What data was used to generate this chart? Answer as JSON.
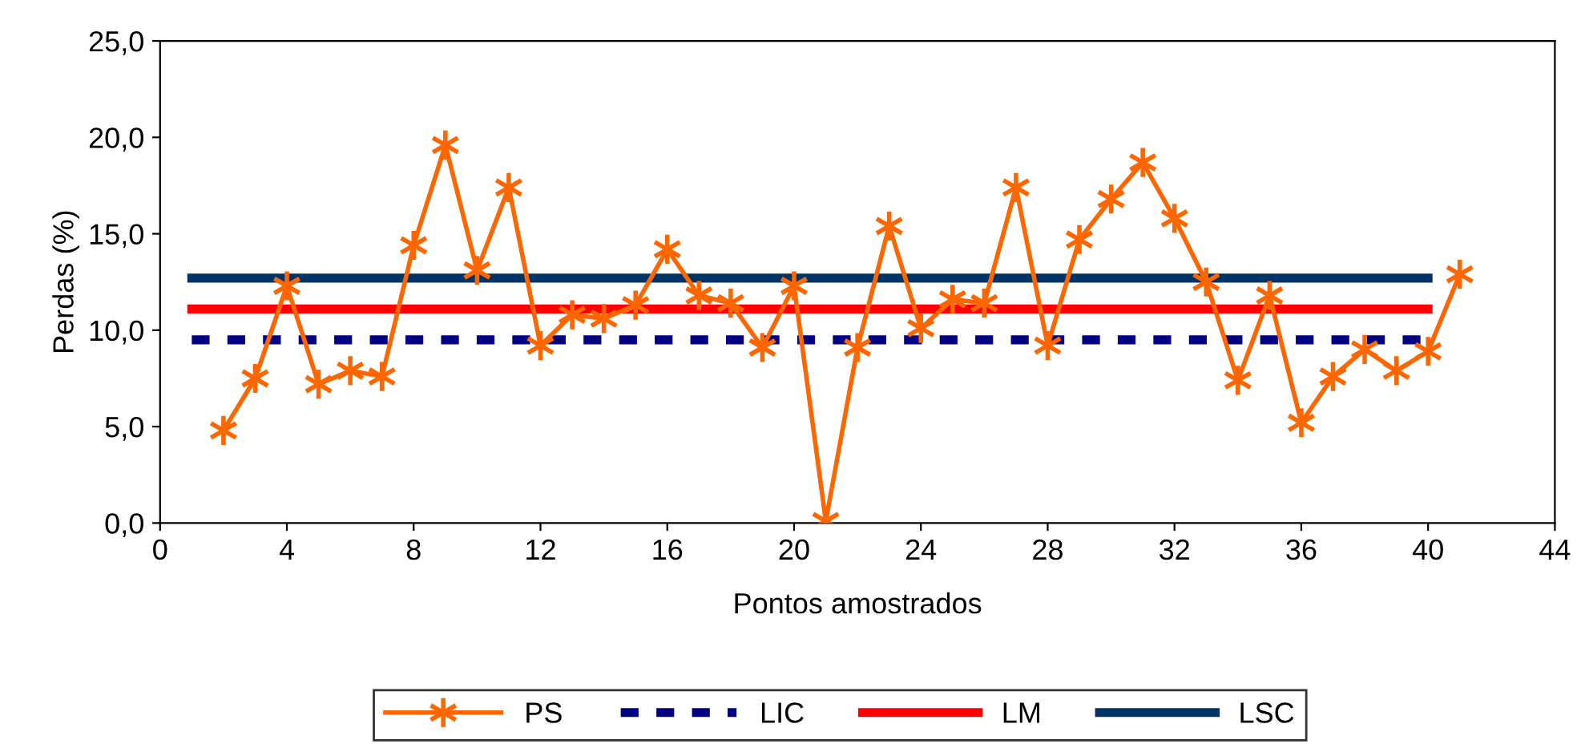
{
  "chart_data": {
    "type": "line",
    "xlabel": "Pontos amostrados",
    "ylabel": "Perdas (%)",
    "xlim": [
      0,
      44
    ],
    "xticks": [
      0,
      4,
      8,
      12,
      16,
      20,
      24,
      28,
      32,
      36,
      40,
      44
    ],
    "ylim": [
      0,
      25
    ],
    "yticks": [
      {
        "value": 0,
        "label": "0,0"
      },
      {
        "value": 5,
        "label": "5,0"
      },
      {
        "value": 10,
        "label": "10,0"
      },
      {
        "value": 15,
        "label": "15,0"
      },
      {
        "value": 20,
        "label": "20,0"
      },
      {
        "value": 25,
        "label": "25,0"
      }
    ],
    "grid": false,
    "legend": "bottom",
    "series": [
      {
        "name": "PS",
        "color": "#ff6600",
        "marker": "cross",
        "line_style": "solid",
        "x": [
          2,
          3,
          4,
          5,
          6,
          7,
          8,
          9,
          10,
          11,
          12,
          13,
          14,
          15,
          16,
          17,
          18,
          19,
          20,
          21,
          22,
          23,
          24,
          25,
          26,
          27,
          28,
          29,
          30,
          31,
          32,
          33,
          34,
          35,
          36,
          37,
          38,
          39,
          40,
          41
        ],
        "values": [
          4.8,
          7.5,
          12.3,
          7.2,
          7.9,
          7.6,
          14.4,
          19.6,
          13.1,
          17.4,
          9.2,
          10.8,
          10.6,
          11.3,
          14.2,
          11.8,
          11.4,
          9.1,
          12.3,
          0.1,
          9.1,
          15.4,
          10.1,
          11.6,
          11.4,
          17.4,
          9.2,
          14.7,
          16.8,
          18.7,
          15.8,
          12.5,
          7.4,
          11.8,
          5.2,
          7.6,
          9.0,
          7.9,
          8.9,
          12.9
        ]
      },
      {
        "name": "LIC",
        "color": "#000080",
        "marker": "none",
        "line_style": "dashed",
        "x": [
          1,
          40
        ],
        "values": [
          9.5,
          9.5
        ]
      },
      {
        "name": "LM",
        "color": "#ff0000",
        "marker": "none",
        "line_style": "solid",
        "x": [
          1,
          40
        ],
        "values": [
          11.1,
          11.1
        ]
      },
      {
        "name": "LSC",
        "color": "#003366",
        "marker": "none",
        "line_style": "solid",
        "x": [
          1,
          40
        ],
        "values": [
          12.7,
          12.7
        ]
      }
    ]
  }
}
